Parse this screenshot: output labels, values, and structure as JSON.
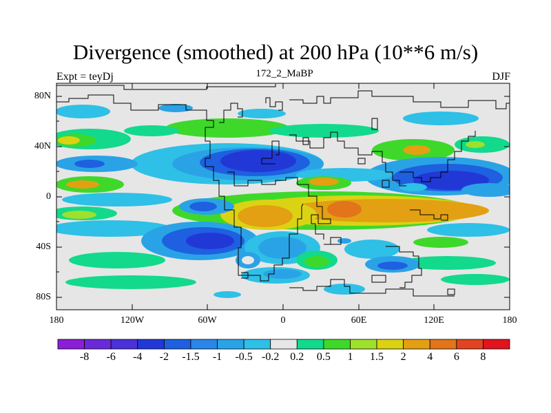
{
  "header": {
    "title": "Divergence (smoothed) at 200 hPa (10**6 m/s)",
    "left_label": "Expt = teyDj",
    "center_label": "172_2_MaBP",
    "right_label": "DJF"
  },
  "map": {
    "lon_range": [
      -180,
      180
    ],
    "lat_range": [
      -90,
      90
    ],
    "x_ticks": [
      "180",
      "120W",
      "60W",
      "0",
      "60E",
      "120E",
      "180"
    ],
    "y_ticks": [
      "80N",
      "40N",
      "0",
      "40S",
      "80S"
    ],
    "background_color": "#e6e6e6"
  },
  "colorbar": {
    "labels": [
      "-8",
      "-6",
      "-4",
      "-2",
      "-1.5",
      "-1",
      "-0.5",
      "-0.2",
      "0.2",
      "0.5",
      "1",
      "1.5",
      "2",
      "4",
      "6",
      "8"
    ],
    "colors": [
      "#8a1fd6",
      "#6a2ad8",
      "#4a32d8",
      "#2238d6",
      "#1e60e0",
      "#2a86e8",
      "#2aa3e6",
      "#2ec0e6",
      "#e6e6e6",
      "#12d98c",
      "#3ed82a",
      "#9ee02c",
      "#dcd214",
      "#e2a012",
      "#e2741a",
      "#e04420",
      "#e0141e"
    ]
  }
}
